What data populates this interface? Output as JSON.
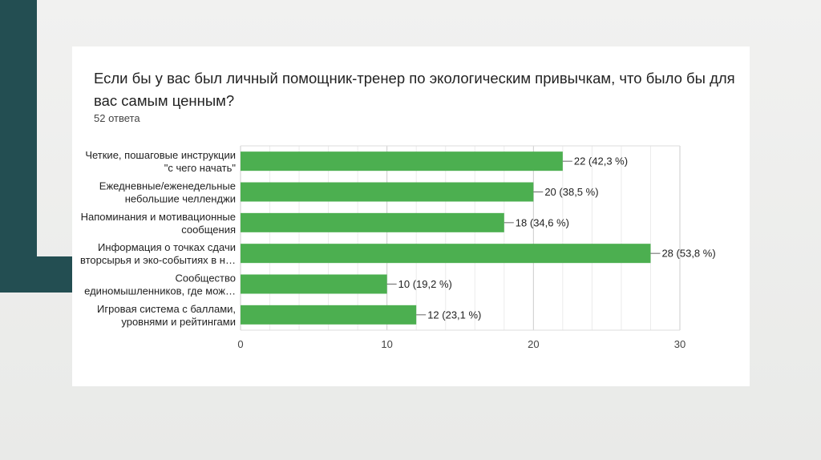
{
  "colors": {
    "accent": "#234e52",
    "bar": "#4caf50",
    "grid": "#dddddd"
  },
  "question": {
    "title": "Если бы у вас был личный помощник-тренер по экологическим привычкам, что было бы для вас самым ценным?",
    "responses": "52 ответа"
  },
  "chart_data": {
    "type": "bar",
    "orientation": "horizontal",
    "categories": [
      [
        "Четкие, пошаговые инструкции",
        "\"с чего начать\""
      ],
      [
        "Ежедневные/еженедельные",
        "небольшие челленджи"
      ],
      [
        "Напоминания и мотивационные",
        "сообщения"
      ],
      [
        "Информация о точках сдачи",
        "вторсырья и эко-событиях в н…"
      ],
      [
        "Сообщество",
        "единомышленников, где мож…"
      ],
      [
        "Игровая система с баллами,",
        "уровнями и рейтингами"
      ]
    ],
    "values": [
      22,
      20,
      18,
      28,
      10,
      12
    ],
    "data_labels": [
      "22 (42,3 %)",
      "20 (38,5 %)",
      "18 (34,6 %)",
      "28 (53,8 %)",
      "10 (19,2 %)",
      "12 (23,1 %)"
    ],
    "xlim": [
      0,
      30
    ],
    "xticks": [
      0,
      10,
      20,
      30
    ],
    "grid": true
  }
}
